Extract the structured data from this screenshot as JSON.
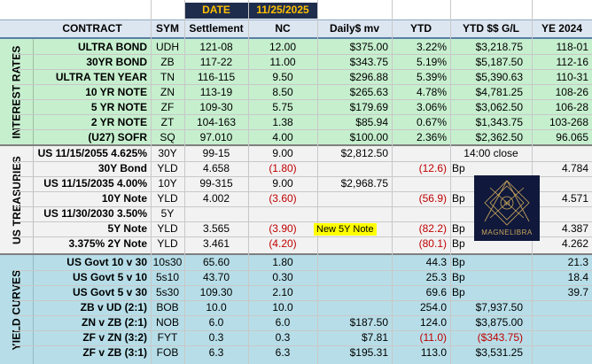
{
  "header": {
    "date_label": "DATE",
    "date_value": "11/25/2025",
    "columns": [
      "CONTRACT",
      "SYM",
      "Settlement",
      "NC",
      "Daily$ mv",
      "YTD",
      "YTD $$ G/L",
      "YE 2024"
    ]
  },
  "sections": {
    "interest_rates": "INTEREST RATES",
    "us_treasuries": "US TREASURIES",
    "yield_curves": "YIELD CURVES"
  },
  "interest_rates": [
    {
      "contract": "ULTRA BOND",
      "sym": "UDH",
      "settlement": "121-08",
      "nc": "12.00",
      "daily": "$375.00",
      "ytd": "3.22%",
      "ytd_gl": "$3,218.75",
      "ye": "118-01"
    },
    {
      "contract": "30YR BOND",
      "sym": "ZB",
      "settlement": "117-22",
      "nc": "11.00",
      "daily": "$343.75",
      "ytd": "5.19%",
      "ytd_gl": "$5,187.50",
      "ye": "112-16"
    },
    {
      "contract": "ULTRA TEN YEAR",
      "sym": "TN",
      "settlement": "116-115",
      "nc": "9.50",
      "daily": "$296.88",
      "ytd": "5.39%",
      "ytd_gl": "$5,390.63",
      "ye": "110-31"
    },
    {
      "contract": "10 YR NOTE",
      "sym": "ZN",
      "settlement": "113-19",
      "nc": "8.50",
      "daily": "$265.63",
      "ytd": "4.78%",
      "ytd_gl": "$4,781.25",
      "ye": "108-26"
    },
    {
      "contract": "5 YR NOTE",
      "sym": "ZF",
      "settlement": "109-30",
      "nc": "5.75",
      "daily": "$179.69",
      "ytd": "3.06%",
      "ytd_gl": "$3,062.50",
      "ye": "106-28"
    },
    {
      "contract": "2 YR NOTE",
      "sym": "ZT",
      "settlement": "104-163",
      "nc": "1.38",
      "daily": "$85.94",
      "ytd": "0.67%",
      "ytd_gl": "$1,343.75",
      "ye": "103-268"
    },
    {
      "contract": "(U27) SOFR",
      "sym": "SQ",
      "settlement": "97.010",
      "nc": "4.00",
      "daily": "$100.00",
      "ytd": "2.36%",
      "ytd_gl": "$2,362.50",
      "ye": "96.065"
    }
  ],
  "us_treasuries": [
    {
      "contract": "US 11/15/2055 4.625%",
      "sym": "30Y",
      "settlement": "99-15",
      "nc": "9.00",
      "daily": "$2,812.50",
      "ytd": "",
      "unit": "",
      "ye": "",
      "note": "14:00 close"
    },
    {
      "contract": "30Y Bond",
      "sym": "YLD",
      "settlement": "4.658",
      "nc": "(1.80)",
      "daily": "",
      "ytd": "(12.6)",
      "unit": "Bp",
      "ye": "4.784",
      "note": ""
    },
    {
      "contract": "US 11/15/2035 4.00%",
      "sym": "10Y",
      "settlement": "99-315",
      "nc": "9.00",
      "daily": "$2,968.75",
      "ytd": "",
      "unit": "",
      "ye": "",
      "note": ""
    },
    {
      "contract": "10Y Note",
      "sym": "YLD",
      "settlement": "4.002",
      "nc": "(3.60)",
      "daily": "",
      "ytd": "(56.9)",
      "unit": "Bp",
      "ye": "4.571",
      "note": ""
    },
    {
      "contract": "US 11/30/2030 3.50%",
      "sym": "5Y",
      "settlement": "",
      "nc": "",
      "daily": "",
      "ytd": "",
      "unit": "",
      "ye": "",
      "note": ""
    },
    {
      "contract": "5Y Note",
      "sym": "YLD",
      "settlement": "3.565",
      "nc": "(3.90)",
      "daily": "New 5Y Note",
      "ytd": "(82.2)",
      "unit": "Bp",
      "ye": "4.387",
      "note": ""
    },
    {
      "contract": "3.375% 2Y Note",
      "sym": "YLD",
      "settlement": "3.461",
      "nc": "(4.20)",
      "daily": "",
      "ytd": "(80.1)",
      "unit": "Bp",
      "ye": "4.262",
      "note": ""
    }
  ],
  "logo_text": "MAGNELIBRA",
  "yield_curves": [
    {
      "contract": "US Govt 10 v 30",
      "sym": "10s30",
      "settlement": "65.60",
      "nc": "1.80",
      "daily": "",
      "ytd": "44.3",
      "unit": "Bp",
      "ytd_gl": "",
      "ye": "21.3"
    },
    {
      "contract": "US Govt 5 v 10",
      "sym": "5s10",
      "settlement": "43.70",
      "nc": "0.30",
      "daily": "",
      "ytd": "25.3",
      "unit": "Bp",
      "ytd_gl": "",
      "ye": "18.4"
    },
    {
      "contract": "US Govt 5 v 30",
      "sym": "5s30",
      "settlement": "109.30",
      "nc": "2.10",
      "daily": "",
      "ytd": "69.6",
      "unit": "Bp",
      "ytd_gl": "",
      "ye": "39.7"
    },
    {
      "contract": "ZB v UD (2:1)",
      "sym": "BOB",
      "settlement": "10.0",
      "nc": "10.0",
      "daily": "",
      "ytd": "254.0",
      "unit": "",
      "ytd_gl": "$7,937.50",
      "ye": ""
    },
    {
      "contract": "ZN v ZB (2:1)",
      "sym": "NOB",
      "settlement": "6.0",
      "nc": "6.0",
      "daily": "$187.50",
      "ytd": "124.0",
      "unit": "",
      "ytd_gl": "$3,875.00",
      "ye": ""
    },
    {
      "contract": "ZF v ZN (3:2)",
      "sym": "FYT",
      "settlement": "0.3",
      "nc": "0.3",
      "daily": "$7.81",
      "ytd": "(11.0)",
      "unit": "",
      "ytd_gl": "($343.75)",
      "ye": ""
    },
    {
      "contract": "ZF v ZB (3:1)",
      "sym": "FOB",
      "settlement": "6.3",
      "nc": "6.3",
      "daily": "$195.31",
      "ytd": "113.0",
      "unit": "",
      "ytd_gl": "$3,531.25",
      "ye": ""
    }
  ],
  "colors": {
    "header_bg": "#dce6f1",
    "date_bg": "#1f2d4d",
    "date_text": "#ffc000",
    "rates_bg": "#c6efce",
    "treasuries_bg": "#f2f2f2",
    "curves_bg": "#b7dee8",
    "negative": "#c00000",
    "highlight": "#ffff00",
    "logo_bg": "#10193c"
  }
}
